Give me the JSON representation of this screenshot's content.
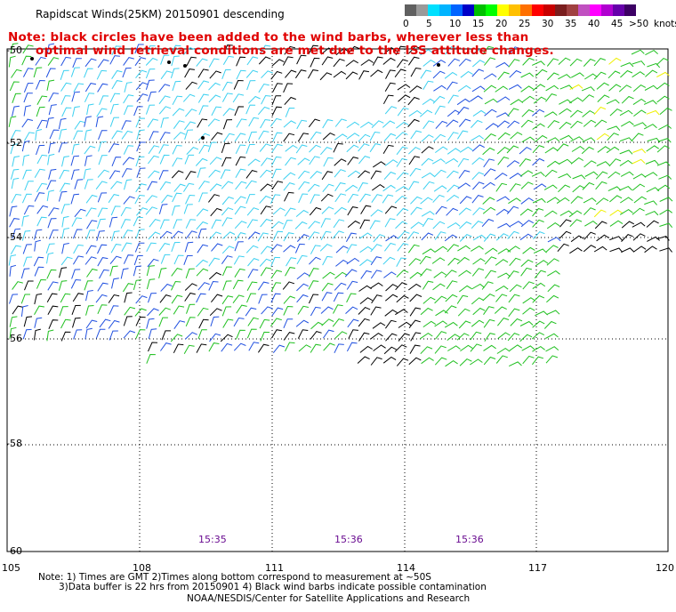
{
  "header": {
    "title": "Rapidscat Winds(25KM) 20150901 descending"
  },
  "note": {
    "line1": "Note: black circles have been added to the wind barbs, wherever less than",
    "line2": "optimal wind retrieval conditions are met due to the ISS attitude changes."
  },
  "colorbar": {
    "unit_label": "knots",
    "colors": [
      "#606060",
      "#9a9a9a",
      "#00e0ff",
      "#00b4ff",
      "#0064ff",
      "#0000c8",
      "#00c000",
      "#00ff00",
      "#ffff00",
      "#ffc000",
      "#ff7000",
      "#ff0000",
      "#c80000",
      "#7a1e1e",
      "#a04040",
      "#c050c0",
      "#ff00ff",
      "#b000d0",
      "#6600aa",
      "#3c0064"
    ],
    "tick_labels": [
      "0",
      "5",
      "10",
      "15",
      "20",
      "25",
      "30",
      "35",
      "40",
      "45",
      ">50"
    ]
  },
  "axes": {
    "y_labels": [
      "-50",
      "-52",
      "-54",
      "-56",
      "-58",
      "-60"
    ],
    "x_labels": [
      "105",
      "108",
      "111",
      "114",
      "117",
      "120"
    ]
  },
  "times": [
    "15:35",
    "15:36",
    "15:36"
  ],
  "footer": {
    "line1": "Note: 1) Times are GMT 2)Times along bottom correspond to measurement at ~50S",
    "line2": "3)Data buffer is 22 hrs from 20150901 4) Black wind barbs indicate possible contamination",
    "line3": "NOAA/NESDIS/Center for Satellite Applications and Research"
  },
  "legend_colors": {
    "barb_black": "#000000",
    "barb_light_cyan": "#3cd0f0",
    "barb_blue": "#2050e0",
    "barb_green": "#20c020",
    "barb_yellow": "#f0f000",
    "note_red": "#e00000",
    "time_purple": "#6a0d91"
  }
}
